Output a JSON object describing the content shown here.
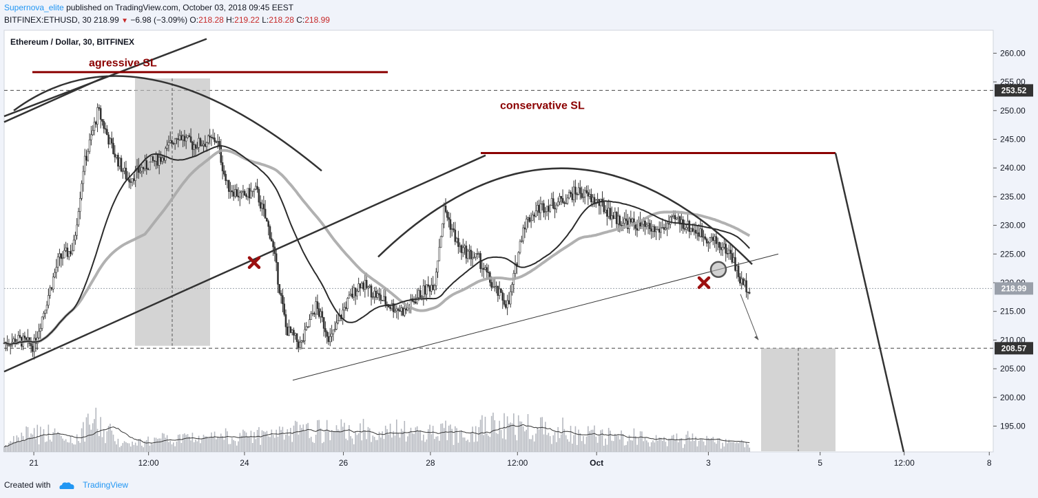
{
  "header": {
    "author": "Supernova_elite",
    "published_text": "published on TradingView.com, October 03, 2018 09:45 EEST",
    "symbol": "BITFINEX:ETHUSD, 30",
    "last": "218.99",
    "change": "−6.98 (−3.09%)",
    "o_label": "O:",
    "o": "218.28",
    "h_label": "H:",
    "h": "219.22",
    "l_label": "L:",
    "l": "218.28",
    "c_label": "C:",
    "c": "218.99"
  },
  "chart_data": {
    "type": "candlestick",
    "title": "Ethereum / Dollar, 30, BITFINEX",
    "ylim": [
      190.5,
      264
    ],
    "y_ticks": [
      195,
      200,
      205,
      210,
      215,
      220,
      225,
      230,
      235,
      240,
      245,
      250,
      255,
      260
    ],
    "x_ticks": [
      "21",
      "12:00",
      "24",
      "26",
      "28",
      "12:00",
      "Oct",
      "3",
      "5",
      "12:00",
      "8"
    ],
    "price_labels": [
      {
        "value": 253.52,
        "text": "253.52",
        "style": "dark"
      },
      {
        "value": 218.99,
        "text": "218.99",
        "style": "gray"
      },
      {
        "value": 208.57,
        "text": "208.57",
        "style": "dark"
      }
    ],
    "annotations": [
      {
        "text": "agressive SL",
        "price": 256.8
      },
      {
        "text": "conservative SL",
        "price": 242.6
      }
    ],
    "price_path": [
      {
        "x": 0.0,
        "y": 209.5
      },
      {
        "x": 0.015,
        "y": 210
      },
      {
        "x": 0.03,
        "y": 209
      },
      {
        "x": 0.04,
        "y": 215
      },
      {
        "x": 0.055,
        "y": 224
      },
      {
        "x": 0.07,
        "y": 226
      },
      {
        "x": 0.08,
        "y": 240
      },
      {
        "x": 0.095,
        "y": 250
      },
      {
        "x": 0.11,
        "y": 243
      },
      {
        "x": 0.125,
        "y": 238
      },
      {
        "x": 0.14,
        "y": 240
      },
      {
        "x": 0.16,
        "y": 242
      },
      {
        "x": 0.175,
        "y": 246
      },
      {
        "x": 0.19,
        "y": 244
      },
      {
        "x": 0.215,
        "y": 245
      },
      {
        "x": 0.225,
        "y": 237
      },
      {
        "x": 0.24,
        "y": 235
      },
      {
        "x": 0.255,
        "y": 236
      },
      {
        "x": 0.27,
        "y": 228
      },
      {
        "x": 0.285,
        "y": 212
      },
      {
        "x": 0.3,
        "y": 209
      },
      {
        "x": 0.315,
        "y": 216
      },
      {
        "x": 0.33,
        "y": 210
      },
      {
        "x": 0.345,
        "y": 216
      },
      {
        "x": 0.36,
        "y": 220
      },
      {
        "x": 0.375,
        "y": 218
      },
      {
        "x": 0.39,
        "y": 216
      },
      {
        "x": 0.405,
        "y": 215
      },
      {
        "x": 0.42,
        "y": 218
      },
      {
        "x": 0.435,
        "y": 220
      },
      {
        "x": 0.445,
        "y": 233
      },
      {
        "x": 0.46,
        "y": 226
      },
      {
        "x": 0.48,
        "y": 224
      },
      {
        "x": 0.495,
        "y": 219
      },
      {
        "x": 0.51,
        "y": 216
      },
      {
        "x": 0.525,
        "y": 230
      },
      {
        "x": 0.54,
        "y": 233
      },
      {
        "x": 0.56,
        "y": 234
      },
      {
        "x": 0.58,
        "y": 236
      },
      {
        "x": 0.6,
        "y": 234
      },
      {
        "x": 0.62,
        "y": 231
      },
      {
        "x": 0.64,
        "y": 230
      },
      {
        "x": 0.66,
        "y": 229
      },
      {
        "x": 0.68,
        "y": 231
      },
      {
        "x": 0.7,
        "y": 229
      },
      {
        "x": 0.72,
        "y": 227
      },
      {
        "x": 0.735,
        "y": 225
      },
      {
        "x": 0.745,
        "y": 220
      },
      {
        "x": 0.755,
        "y": 218.99
      }
    ],
    "volume_path": [
      {
        "x": 0.0,
        "v": 0.1
      },
      {
        "x": 0.03,
        "v": 0.65
      },
      {
        "x": 0.07,
        "v": 0.25
      },
      {
        "x": 0.09,
        "v": 0.95
      },
      {
        "x": 0.12,
        "v": 0.2
      },
      {
        "x": 0.29,
        "v": 0.55
      },
      {
        "x": 0.31,
        "v": 0.62
      },
      {
        "x": 0.45,
        "v": 0.55
      },
      {
        "x": 0.49,
        "v": 0.78
      },
      {
        "x": 0.53,
        "v": 0.8
      },
      {
        "x": 0.6,
        "v": 0.45
      },
      {
        "x": 0.7,
        "v": 0.3
      },
      {
        "x": 0.74,
        "v": 0.2
      },
      {
        "x": 0.755,
        "v": 0.15
      }
    ]
  },
  "footer": {
    "created": "Created with",
    "brand": "TradingView"
  }
}
